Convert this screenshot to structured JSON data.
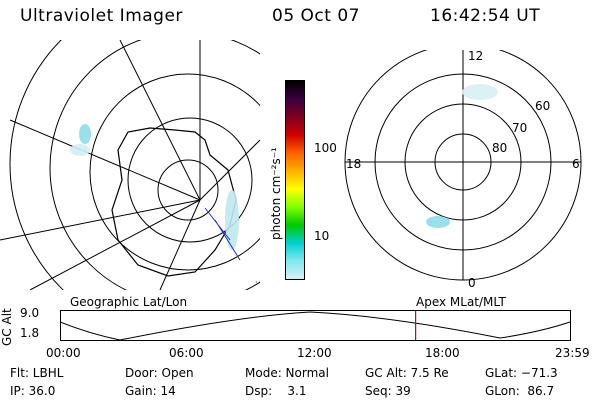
{
  "header": {
    "instrument": "Ultraviolet Imager",
    "date": "05 Oct 07",
    "time": "16:42:54 UT"
  },
  "colorbar": {
    "label": "photon cm⁻²s⁻¹",
    "ticks": [
      "100",
      "10"
    ],
    "colors": [
      "#000000",
      "#3a0040",
      "#800020",
      "#d00000",
      "#ff6000",
      "#ffb000",
      "#ffff00",
      "#80ff00",
      "#00c800",
      "#00d0d0",
      "#80e8f0",
      "#d8f0f4"
    ]
  },
  "geo_map": {
    "label": "Geographic Lat/Lon"
  },
  "apex_map": {
    "label": "Apex MLat/MLT",
    "mlt_labels": {
      "top": "12",
      "left": "18",
      "right": "6",
      "bottom": "0"
    },
    "lat_labels": [
      "60",
      "70",
      "80"
    ]
  },
  "altitude_plot": {
    "ylabel": "GC Alt",
    "yticks": [
      "9.0",
      "1.8"
    ],
    "xticks": [
      "00:00",
      "06:00",
      "12:00",
      "18:00",
      "23:59"
    ],
    "current_marker": "16:42",
    "marker_color": "#d00000"
  },
  "footer": {
    "filter": "Flt: LBHL",
    "ip": "IP: 36.0",
    "door": "Door: Open",
    "gain": "Gain: 14",
    "mode": "Mode: Normal",
    "dsp": "Dsp:    3.1",
    "gc_alt": "GC Alt: 7.5 Re",
    "seq": "Seq: 39",
    "glat": "GLat: −71.3",
    "glon": "GLon:  86.7"
  }
}
